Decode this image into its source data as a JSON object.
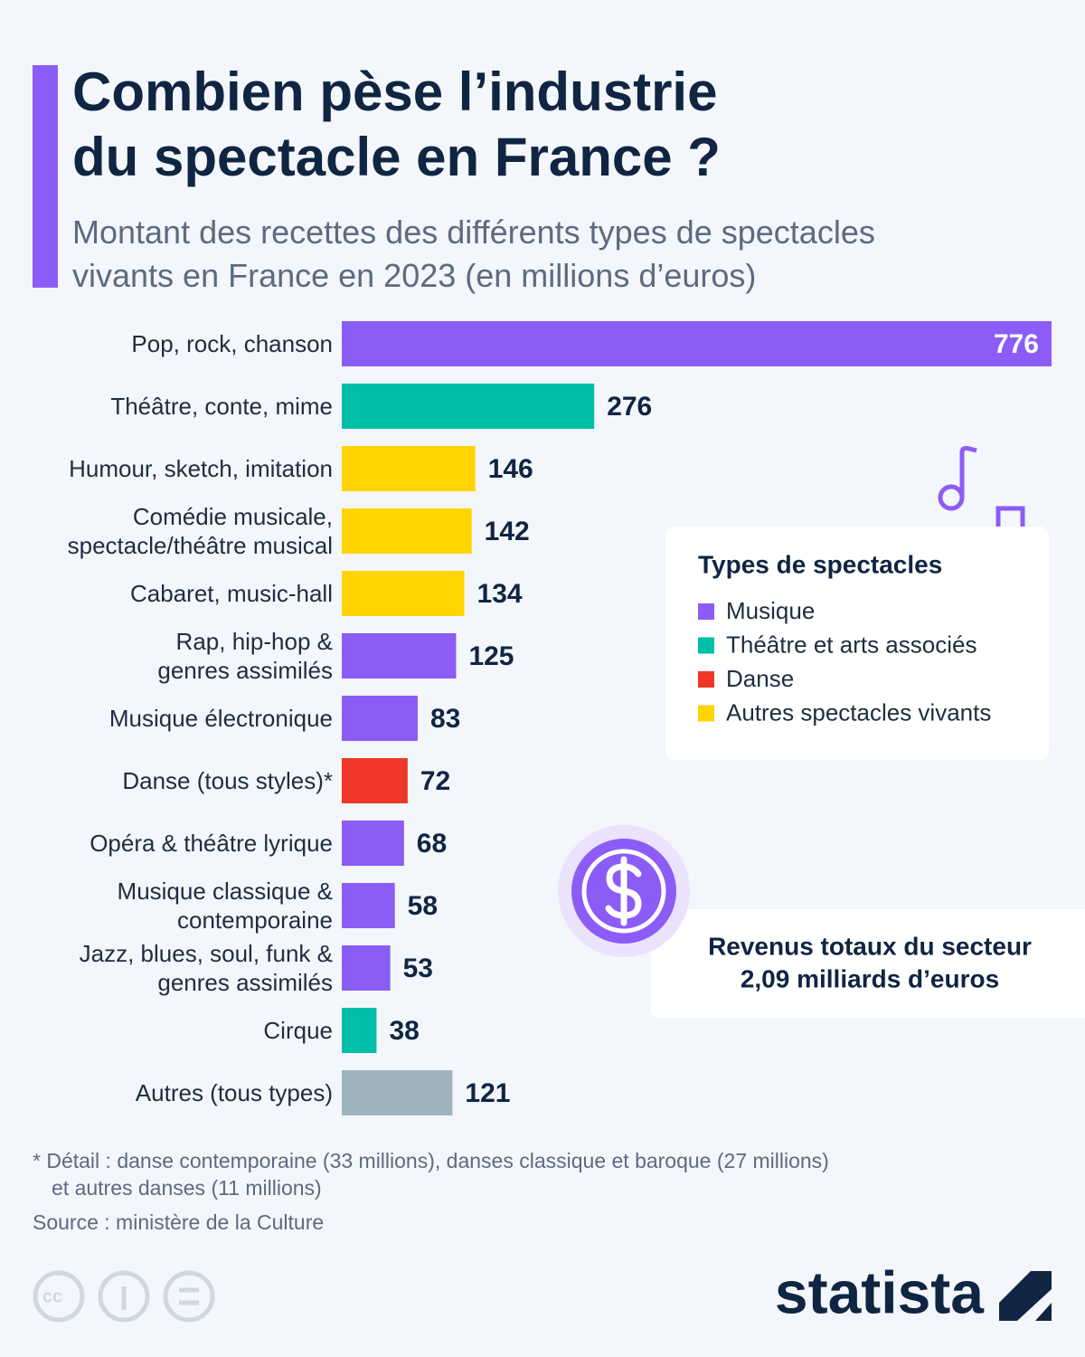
{
  "chart_data": {
    "type": "bar",
    "orientation": "horizontal",
    "title": "Combien pèse l’industrie\ndu spectacle en France ?",
    "subtitle": "Montant des recettes des différents types de spectacles\nvivants en France en 2023 (en millions d’euros)",
    "categories": [
      "Pop, rock, chanson",
      "Théâtre, conte, mime",
      "Humour, sketch, imitation",
      "Comédie musicale,\nspectacle/théâtre musical",
      "Cabaret, music-hall",
      "Rap, hip-hop &\ngenres assimilés",
      "Musique électronique",
      "Danse (tous styles)*",
      "Opéra & théâtre lyrique",
      "Musique classique &\ncontemporaine",
      "Jazz, blues, soul, funk &\ngenres assimilés",
      "Cirque",
      "Autres (tous types)"
    ],
    "values": [
      776,
      276,
      146,
      142,
      134,
      125,
      83,
      72,
      68,
      58,
      53,
      38,
      121
    ],
    "colors": [
      "#8b5cf6",
      "#00bfa8",
      "#ffd400",
      "#ffd400",
      "#ffd400",
      "#8b5cf6",
      "#8b5cf6",
      "#ee3629",
      "#8b5cf6",
      "#8b5cf6",
      "#8b5cf6",
      "#00bfa8",
      "#9eb3bd"
    ],
    "legend": {
      "title": "Types de spectacles",
      "items": [
        {
          "name": "Musique",
          "color": "#8b5cf6"
        },
        {
          "name": "Théâtre et arts associés",
          "color": "#00bfa8"
        },
        {
          "name": "Danse",
          "color": "#ee3629"
        },
        {
          "name": "Autres spectacles vivants",
          "color": "#ffd400"
        }
      ]
    },
    "annotation": [
      "Revenus totaux du secteur",
      "2,09 milliards d’euros"
    ],
    "footnote": [
      "* Détail : danse contemporaine (33 millions), danses classique et baroque (27 millions)",
      "et autres danses (11 millions)"
    ],
    "source": "Source : ministère de la Culture",
    "brand": "statista"
  }
}
